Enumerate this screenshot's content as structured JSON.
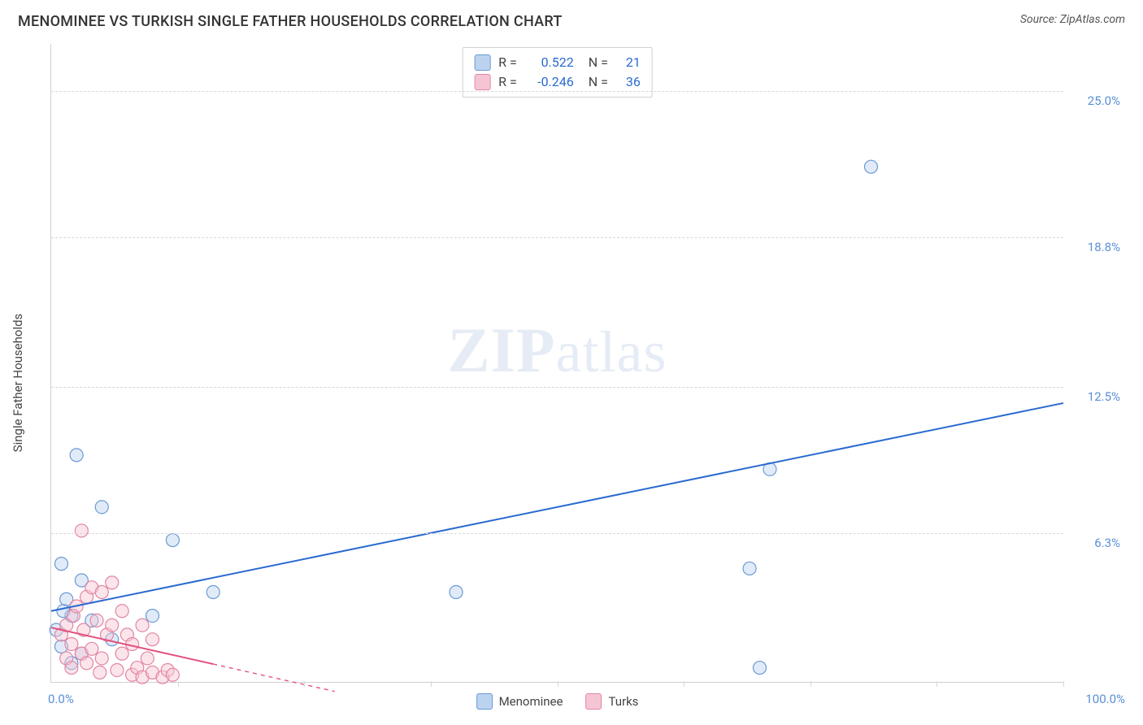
{
  "header": {
    "title": "MENOMINEE VS TURKISH SINGLE FATHER HOUSEHOLDS CORRELATION CHART",
    "source_prefix": "Source: ",
    "source_name": "ZipAtlas.com"
  },
  "watermark": {
    "zip": "ZIP",
    "atlas": "atlas"
  },
  "chart": {
    "type": "scatter",
    "ylabel": "Single Father Households",
    "xlim": [
      0,
      100
    ],
    "ylim": [
      0,
      27
    ],
    "x_start_label": "0.0%",
    "x_end_label": "100.0%",
    "x_ticks": [
      0,
      12.5,
      25,
      37.5,
      50,
      62.5,
      75,
      87.5,
      100
    ],
    "y_ticks": [
      {
        "v": 6.3,
        "label": "6.3%"
      },
      {
        "v": 12.5,
        "label": "12.5%"
      },
      {
        "v": 18.8,
        "label": "18.8%"
      },
      {
        "v": 25.0,
        "label": "25.0%"
      }
    ],
    "marker_radius": 8,
    "marker_opacity": 0.45,
    "line_width": 2,
    "grid_color": "#d8d8d8",
    "background_color": "#ffffff",
    "series": [
      {
        "name": "Menominee",
        "color_fill": "#bcd3ef",
        "color_stroke": "#6a9ad6",
        "line_color": "#2a6ad0",
        "r": "0.522",
        "n": "21",
        "trend": {
          "x1": 0,
          "y1": 3.0,
          "x2": 100,
          "y2": 11.8,
          "solid_until_x": 100
        },
        "points": [
          [
            2.5,
            9.6
          ],
          [
            5.0,
            7.4
          ],
          [
            1.0,
            5.0
          ],
          [
            3.0,
            4.3
          ],
          [
            1.5,
            3.5
          ],
          [
            2.0,
            2.8
          ],
          [
            4.0,
            2.6
          ],
          [
            12.0,
            6.0
          ],
          [
            10.0,
            2.8
          ],
          [
            16.0,
            3.8
          ],
          [
            6.0,
            1.8
          ],
          [
            3.0,
            1.2
          ],
          [
            40.0,
            3.8
          ],
          [
            69.0,
            4.8
          ],
          [
            71.0,
            9.0
          ],
          [
            70.0,
            0.6
          ],
          [
            81.0,
            21.8
          ],
          [
            2.0,
            0.8
          ],
          [
            1.0,
            1.5
          ],
          [
            0.5,
            2.2
          ],
          [
            1.2,
            3.0
          ]
        ]
      },
      {
        "name": "Turks",
        "color_fill": "#f6c5d3",
        "color_stroke": "#e286a3",
        "line_color": "#e2527e",
        "r": "-0.246",
        "n": "36",
        "trend": {
          "x1": 0,
          "y1": 2.3,
          "x2": 28,
          "y2": -0.4,
          "solid_until_x": 16
        },
        "points": [
          [
            1.0,
            2.0
          ],
          [
            1.5,
            2.4
          ],
          [
            2.0,
            1.6
          ],
          [
            2.2,
            2.8
          ],
          [
            2.5,
            3.2
          ],
          [
            3.0,
            6.4
          ],
          [
            3.0,
            1.2
          ],
          [
            3.2,
            2.2
          ],
          [
            3.5,
            0.8
          ],
          [
            3.5,
            3.6
          ],
          [
            4.0,
            4.0
          ],
          [
            4.0,
            1.4
          ],
          [
            4.5,
            2.6
          ],
          [
            4.8,
            0.4
          ],
          [
            5.0,
            3.8
          ],
          [
            5.0,
            1.0
          ],
          [
            5.5,
            2.0
          ],
          [
            6.0,
            4.2
          ],
          [
            6.0,
            2.4
          ],
          [
            6.5,
            0.5
          ],
          [
            7.0,
            3.0
          ],
          [
            7.0,
            1.2
          ],
          [
            7.5,
            2.0
          ],
          [
            8.0,
            0.3
          ],
          [
            8.0,
            1.6
          ],
          [
            8.5,
            0.6
          ],
          [
            9.0,
            2.4
          ],
          [
            9.0,
            0.2
          ],
          [
            9.5,
            1.0
          ],
          [
            10.0,
            1.8
          ],
          [
            10.0,
            0.4
          ],
          [
            11.0,
            0.2
          ],
          [
            11.5,
            0.5
          ],
          [
            12.0,
            0.3
          ],
          [
            1.5,
            1.0
          ],
          [
            2.0,
            0.6
          ]
        ]
      }
    ],
    "legend": [
      {
        "label": "Menominee",
        "fill": "#bcd3ef",
        "stroke": "#6a9ad6"
      },
      {
        "label": "Turks",
        "fill": "#f6c5d3",
        "stroke": "#e286a3"
      }
    ]
  }
}
